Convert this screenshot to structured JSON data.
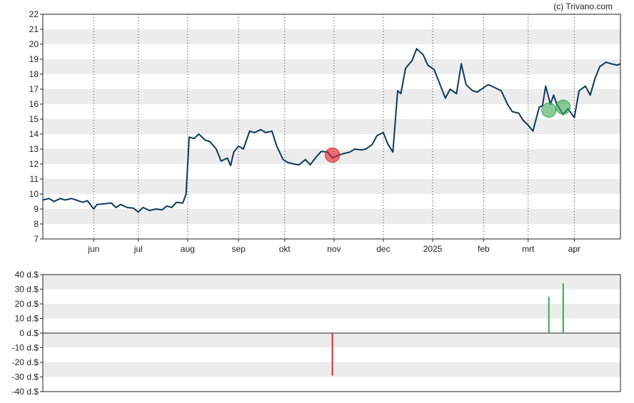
{
  "credit": "(c) Trivano.com",
  "colors": {
    "price_line": "#0d3a5c",
    "band": "#ececec",
    "buy": "#3aa655",
    "sell": "#e8202a",
    "axis": "#222222",
    "vgrid": "#333333"
  },
  "chart_data": [
    {
      "type": "line",
      "title": "",
      "xlabel": "",
      "ylabel": "",
      "ylim": [
        7,
        22
      ],
      "yticks": [
        7,
        8,
        9,
        10,
        11,
        12,
        13,
        14,
        15,
        16,
        17,
        18,
        19,
        20,
        21,
        22
      ],
      "xlim": [
        "2024-05-02",
        "2025-04-30"
      ],
      "xtick_labels": [
        {
          "date": "2024-06-03",
          "label": "jun"
        },
        {
          "date": "2024-07-01",
          "label": "jul"
        },
        {
          "date": "2024-08-01",
          "label": "aug"
        },
        {
          "date": "2024-09-02",
          "label": "sep"
        },
        {
          "date": "2024-10-01",
          "label": "okt"
        },
        {
          "date": "2024-11-01",
          "label": "nov"
        },
        {
          "date": "2024-12-02",
          "label": "dec"
        },
        {
          "date": "2025-01-02",
          "label": "2025"
        },
        {
          "date": "2025-02-03",
          "label": "feb"
        },
        {
          "date": "2025-03-03",
          "label": "mrt"
        },
        {
          "date": "2025-04-01",
          "label": "apr"
        }
      ],
      "grid": {
        "horizontal_bands": true,
        "vertical_dotted": true
      },
      "series": [
        {
          "points": [
            [
              "2024-05-02",
              9.6
            ],
            [
              "2024-05-06",
              9.7
            ],
            [
              "2024-05-09",
              9.5
            ],
            [
              "2024-05-13",
              9.7
            ],
            [
              "2024-05-16",
              9.6
            ],
            [
              "2024-05-20",
              9.7
            ],
            [
              "2024-05-23",
              9.6
            ],
            [
              "2024-05-27",
              9.45
            ],
            [
              "2024-05-30",
              9.55
            ],
            [
              "2024-06-03",
              9.0
            ],
            [
              "2024-06-05",
              9.3
            ],
            [
              "2024-06-10",
              9.35
            ],
            [
              "2024-06-14",
              9.4
            ],
            [
              "2024-06-17",
              9.1
            ],
            [
              "2024-06-20",
              9.3
            ],
            [
              "2024-06-24",
              9.1
            ],
            [
              "2024-06-28",
              9.05
            ],
            [
              "2024-07-01",
              8.8
            ],
            [
              "2024-07-04",
              9.1
            ],
            [
              "2024-07-08",
              8.9
            ],
            [
              "2024-07-12",
              9.0
            ],
            [
              "2024-07-16",
              8.95
            ],
            [
              "2024-07-19",
              9.2
            ],
            [
              "2024-07-22",
              9.1
            ],
            [
              "2024-07-25",
              9.45
            ],
            [
              "2024-07-29",
              9.4
            ],
            [
              "2024-07-31",
              10.0
            ],
            [
              "2024-08-02",
              13.8
            ],
            [
              "2024-08-05",
              13.7
            ],
            [
              "2024-08-08",
              14.0
            ],
            [
              "2024-08-12",
              13.6
            ],
            [
              "2024-08-15",
              13.5
            ],
            [
              "2024-08-19",
              13.0
            ],
            [
              "2024-08-22",
              12.2
            ],
            [
              "2024-08-26",
              12.4
            ],
            [
              "2024-08-28",
              11.9
            ],
            [
              "2024-08-30",
              12.8
            ],
            [
              "2024-09-02",
              13.2
            ],
            [
              "2024-09-05",
              13.0
            ],
            [
              "2024-09-09",
              14.2
            ],
            [
              "2024-09-12",
              14.1
            ],
            [
              "2024-09-16",
              14.3
            ],
            [
              "2024-09-19",
              14.1
            ],
            [
              "2024-09-23",
              14.2
            ],
            [
              "2024-09-26",
              13.2
            ],
            [
              "2024-09-30",
              12.3
            ],
            [
              "2024-10-03",
              12.1
            ],
            [
              "2024-10-07",
              12.0
            ],
            [
              "2024-10-10",
              11.95
            ],
            [
              "2024-10-14",
              12.3
            ],
            [
              "2024-10-17",
              11.95
            ],
            [
              "2024-10-21",
              12.5
            ],
            [
              "2024-10-24",
              12.85
            ],
            [
              "2024-10-28",
              12.8
            ],
            [
              "2024-10-31",
              12.4
            ],
            [
              "2024-11-04",
              12.6
            ],
            [
              "2024-11-07",
              12.7
            ],
            [
              "2024-11-11",
              12.8
            ],
            [
              "2024-11-14",
              13.0
            ],
            [
              "2024-11-18",
              12.95
            ],
            [
              "2024-11-21",
              13.0
            ],
            [
              "2024-11-25",
              13.3
            ],
            [
              "2024-11-28",
              13.9
            ],
            [
              "2024-12-02",
              14.1
            ],
            [
              "2024-12-05",
              13.3
            ],
            [
              "2024-12-08",
              12.8
            ],
            [
              "2024-12-11",
              16.9
            ],
            [
              "2024-12-13",
              16.7
            ],
            [
              "2024-12-16",
              18.4
            ],
            [
              "2024-12-20",
              18.9
            ],
            [
              "2024-12-23",
              19.7
            ],
            [
              "2024-12-27",
              19.3
            ],
            [
              "2024-12-30",
              18.6
            ],
            [
              "2025-01-03",
              18.3
            ],
            [
              "2025-01-07",
              17.2
            ],
            [
              "2025-01-10",
              16.4
            ],
            [
              "2025-01-13",
              17.0
            ],
            [
              "2025-01-17",
              16.7
            ],
            [
              "2025-01-20",
              18.7
            ],
            [
              "2025-01-23",
              17.3
            ],
            [
              "2025-01-27",
              16.9
            ],
            [
              "2025-01-30",
              16.8
            ],
            [
              "2025-02-03",
              17.1
            ],
            [
              "2025-02-06",
              17.3
            ],
            [
              "2025-02-10",
              17.1
            ],
            [
              "2025-02-14",
              16.9
            ],
            [
              "2025-02-18",
              16.0
            ],
            [
              "2025-02-21",
              15.5
            ],
            [
              "2025-02-25",
              15.4
            ],
            [
              "2025-02-28",
              14.9
            ],
            [
              "2025-03-03",
              14.6
            ],
            [
              "2025-03-06",
              14.2
            ],
            [
              "2025-03-10",
              15.8
            ],
            [
              "2025-03-12",
              15.9
            ],
            [
              "2025-03-14",
              17.2
            ],
            [
              "2025-03-17",
              16.0
            ],
            [
              "2025-03-19",
              16.6
            ],
            [
              "2025-03-21",
              16.0
            ],
            [
              "2025-03-25",
              15.3
            ],
            [
              "2025-03-28",
              15.7
            ],
            [
              "2025-04-01",
              15.1
            ],
            [
              "2025-04-04",
              16.9
            ],
            [
              "2025-04-08",
              17.2
            ],
            [
              "2025-04-11",
              16.6
            ],
            [
              "2025-04-14",
              17.7
            ],
            [
              "2025-04-17",
              18.5
            ],
            [
              "2025-04-21",
              18.8
            ],
            [
              "2025-04-24",
              18.7
            ],
            [
              "2025-04-28",
              18.6
            ],
            [
              "2025-04-30",
              18.7
            ]
          ]
        }
      ],
      "markers": [
        {
          "date": "2024-10-31",
          "value": 12.6,
          "kind": "sell"
        },
        {
          "date": "2025-03-16",
          "value": 15.6,
          "kind": "buy"
        },
        {
          "date": "2025-03-25",
          "value": 15.8,
          "kind": "buy"
        }
      ]
    },
    {
      "type": "bar",
      "title": "",
      "xlabel": "",
      "ylabel": "",
      "ylim": [
        -40,
        40
      ],
      "yticks": [
        -40,
        -30,
        -20,
        -10,
        0,
        10,
        20,
        30,
        40
      ],
      "ytick_labels": [
        "-40 d.$",
        "-30 d.$",
        "-20 d.$",
        "-10 d.$",
        "0 d.$",
        "10 d.$",
        "20 d.$",
        "30 d.$",
        "40 d.$"
      ],
      "xlim": [
        "2024-05-02",
        "2025-04-30"
      ],
      "bars": [
        {
          "date": "2024-10-31",
          "value": -29,
          "kind": "sell"
        },
        {
          "date": "2025-03-16",
          "value": 25,
          "kind": "buy"
        },
        {
          "date": "2025-03-25",
          "value": 34,
          "kind": "buy"
        }
      ]
    }
  ]
}
